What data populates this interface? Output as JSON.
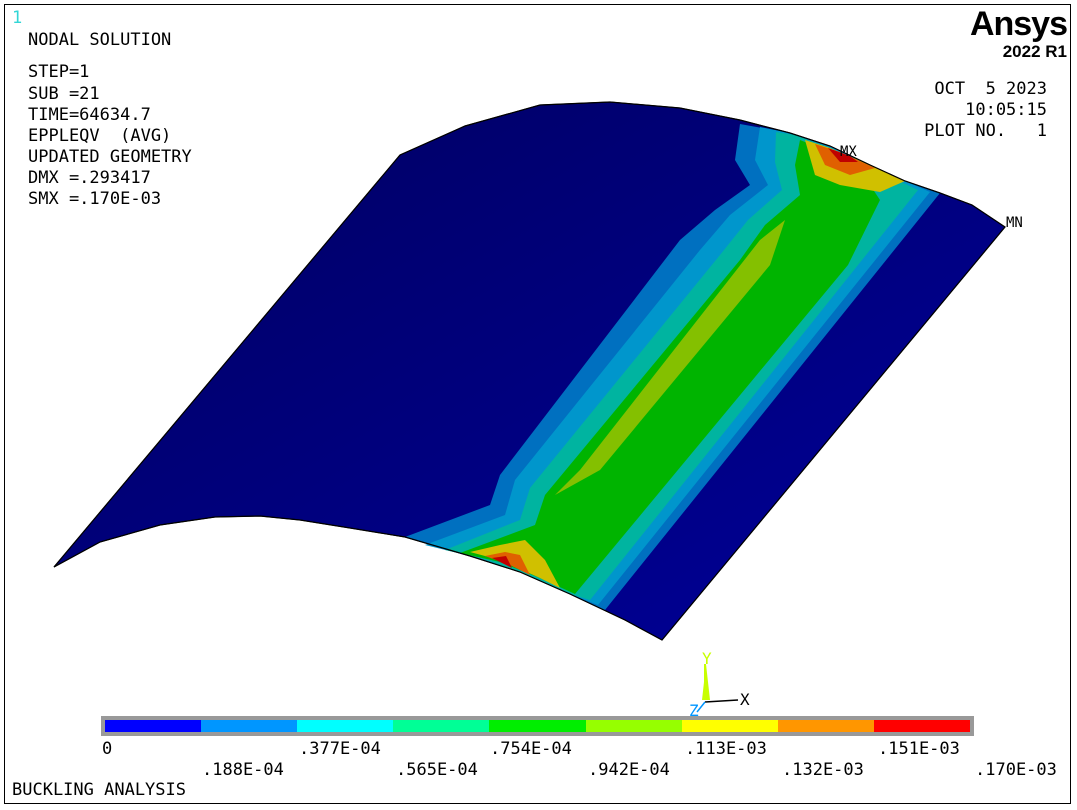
{
  "window_number": "1",
  "logo": {
    "name": "Ansys",
    "version": "2022 R1"
  },
  "info_lines": [
    "NODAL SOLUTION",
    "STEP=1",
    "SUB =21",
    "TIME=64634.7",
    "EPPLEQV  (AVG)",
    "UPDATED GEOMETRY",
    "DMX =.293417",
    "SMX =.170E-03"
  ],
  "date_block": {
    "date": "OCT  5 2023",
    "time": "10:05:15",
    "plot_no": "PLOT NO.   1"
  },
  "markers": {
    "max": "MX",
    "min": "MN"
  },
  "triad": {
    "y": "Y",
    "x": "X",
    "z": "Z"
  },
  "legend": {
    "colors": [
      "#0000ff",
      "#0096ff",
      "#00ffff",
      "#00ff96",
      "#00ee00",
      "#96ff00",
      "#ffff00",
      "#ff9600",
      "#ff0000"
    ],
    "upper_labels": [
      "0",
      ".377E-04",
      ".754E-04",
      ".113E-03",
      ".151E-03"
    ],
    "lower_labels": [
      ".188E-04",
      ".565E-04",
      ".942E-04",
      ".132E-03",
      ".170E-03"
    ]
  },
  "footer_title": "BUCKLING ANALYSIS",
  "colors": {
    "surface": "#00008f",
    "triad_y": "#c8ff00",
    "triad_z": "#0096ff",
    "window_number": "#32d6d6"
  }
}
